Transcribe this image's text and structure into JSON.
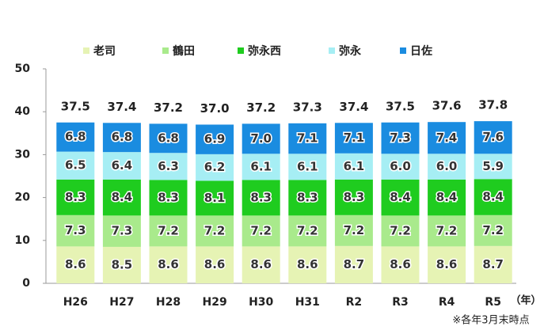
{
  "chart_data": {
    "type": "stacked_bar",
    "categories": [
      "H26",
      "H27",
      "H28",
      "H29",
      "H30",
      "H31",
      "R2",
      "R3",
      "R4",
      "R5"
    ],
    "series": [
      {
        "name": "老司",
        "color": "#e6f3b4",
        "values": [
          8.6,
          8.5,
          8.6,
          8.6,
          8.6,
          8.6,
          8.7,
          8.6,
          8.6,
          8.7
        ]
      },
      {
        "name": "鶴田",
        "color": "#a9ea8c",
        "values": [
          7.3,
          7.3,
          7.2,
          7.2,
          7.2,
          7.2,
          7.2,
          7.2,
          7.2,
          7.2
        ]
      },
      {
        "name": "弥永西",
        "color": "#1fcc1f",
        "values": [
          8.3,
          8.4,
          8.3,
          8.1,
          8.3,
          8.3,
          8.3,
          8.4,
          8.4,
          8.4
        ]
      },
      {
        "name": "弥永",
        "color": "#a6eef4",
        "values": [
          6.5,
          6.4,
          6.3,
          6.2,
          6.1,
          6.1,
          6.1,
          6.0,
          6.0,
          5.9
        ],
        "value_labels": [
          "6.5",
          "6.4",
          "6.3",
          "6.2",
          "6.1",
          "6.1",
          "6.1",
          "6.0",
          "6.0",
          "5.9"
        ]
      },
      {
        "name": "日佐",
        "color": "#1a8ce0",
        "values": [
          6.8,
          6.8,
          6.8,
          6.9,
          7.0,
          7.1,
          7.1,
          7.3,
          7.4,
          7.6
        ],
        "value_labels": [
          "6.8",
          "6.8",
          "6.8",
          "6.9",
          "7.0",
          "7.1",
          "7.1",
          "7.3",
          "7.4",
          "7.6"
        ]
      }
    ],
    "totals": [
      37.5,
      37.4,
      37.2,
      37.0,
      37.2,
      37.3,
      37.4,
      37.5,
      37.6,
      37.8
    ],
    "total_labels": [
      "37.5",
      "37.4",
      "37.2",
      "37.0",
      "37.2",
      "37.3",
      "37.4",
      "37.5",
      "37.6",
      "37.8"
    ],
    "ylim": [
      0,
      50
    ],
    "yticks": [
      0,
      10,
      20,
      30,
      40,
      50
    ],
    "x_unit": "（年）",
    "note": "※各年3月末時点"
  }
}
